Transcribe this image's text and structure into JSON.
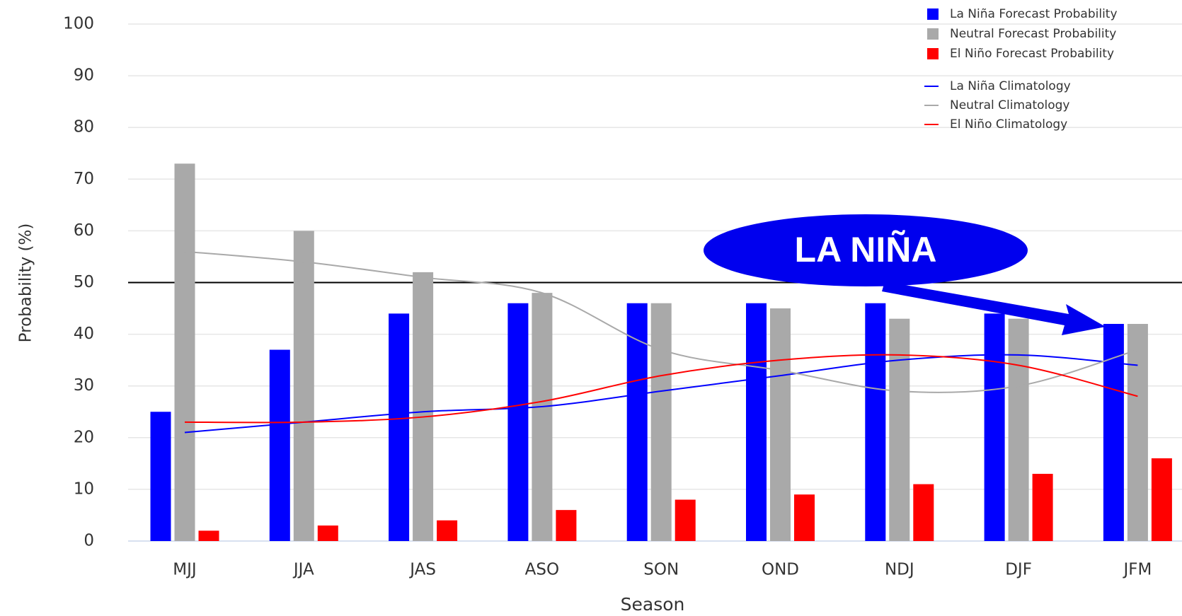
{
  "chart_data": {
    "type": "bar",
    "x_label": "Season",
    "y_label": "Probability (%)",
    "categories": [
      "MJJ",
      "JJA",
      "JAS",
      "ASO",
      "SON",
      "OND",
      "NDJ",
      "DJF",
      "JFM"
    ],
    "series": [
      {
        "name": "La Niña Forecast Probability",
        "type": "bar",
        "color": "#0000ff",
        "values": [
          25,
          37,
          44,
          46,
          46,
          46,
          46,
          44,
          42
        ]
      },
      {
        "name": "Neutral Forecast Probability",
        "type": "bar",
        "color": "#a9a9a9",
        "values": [
          73,
          60,
          52,
          48,
          46,
          45,
          43,
          43,
          42
        ]
      },
      {
        "name": "El Niño Forecast Probability",
        "type": "bar",
        "color": "#ff0000",
        "values": [
          2,
          3,
          4,
          6,
          8,
          9,
          11,
          13,
          16
        ]
      },
      {
        "name": "La Niña Climatology",
        "type": "line",
        "color": "#0000ff",
        "values": [
          21,
          23,
          25,
          26,
          29,
          32,
          35,
          36,
          34
        ]
      },
      {
        "name": "Neutral Climatology",
        "type": "line",
        "color": "#a9a9a9",
        "values": [
          56,
          54,
          51,
          48,
          37,
          33,
          29,
          30,
          37
        ]
      },
      {
        "name": "El Niño Climatology",
        "type": "line",
        "color": "#ff0000",
        "values": [
          23,
          23,
          24,
          27,
          32,
          35,
          36,
          34,
          28
        ]
      }
    ],
    "ylim": [
      0,
      100
    ],
    "yticks": [
      0,
      10,
      20,
      30,
      40,
      50,
      60,
      70,
      80,
      90,
      100
    ],
    "grid": true,
    "reference_line": 50,
    "legend": "top-right",
    "annotation": "LA NIÑA"
  }
}
